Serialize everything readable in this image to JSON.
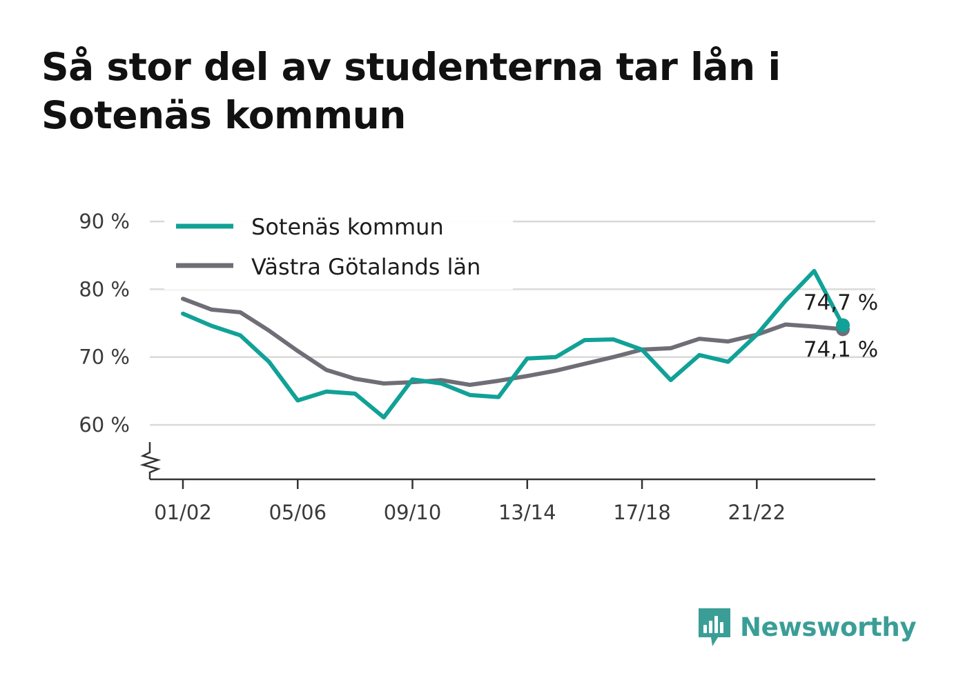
{
  "title": "Så stor del av studenterna tar lån i Sotenäs kommun",
  "brand": {
    "name": "Newsworthy",
    "icon": "newsworthy-logo-icon",
    "color": "#3a9e96"
  },
  "colors": {
    "series_a": "#11a197",
    "series_b": "#6f6e76",
    "grid": "#d9d9d9",
    "axis": "#333333"
  },
  "chart_data": {
    "type": "line",
    "title": "Så stor del av studenterna tar lån i Sotenäs kommun",
    "xlabel": "",
    "ylabel": "",
    "ylim": [
      52,
      90
    ],
    "yticks": [
      60,
      70,
      80,
      90
    ],
    "ytick_labels": [
      "60 %",
      "70 %",
      "80 %",
      "90 %"
    ],
    "y_axis_break": true,
    "grid": true,
    "legend_position": "top-left",
    "categories": [
      "01/02",
      "02/03",
      "03/04",
      "04/05",
      "05/06",
      "06/07",
      "07/08",
      "08/09",
      "09/10",
      "10/11",
      "11/12",
      "12/13",
      "13/14",
      "14/15",
      "15/16",
      "16/17",
      "17/18",
      "18/19",
      "19/20",
      "20/21",
      "21/22",
      "22/23",
      "23/24",
      "24/25"
    ],
    "xtick_labels": [
      "01/02",
      "05/06",
      "09/10",
      "13/14",
      "17/18",
      "21/22"
    ],
    "series": [
      {
        "name": "Sotenäs kommun",
        "color": "#11a197",
        "values": [
          76.4,
          74.6,
          73.2,
          69.3,
          63.6,
          64.9,
          64.6,
          61.1,
          66.7,
          66.1,
          64.4,
          64.1,
          69.8,
          70.0,
          72.5,
          72.6,
          71.1,
          66.6,
          70.3,
          69.3,
          73.3,
          78.3,
          82.7,
          74.7
        ],
        "end_label": "74,7 %"
      },
      {
        "name": "Västra Götalands län",
        "color": "#6f6e76",
        "values": [
          78.6,
          77.0,
          76.6,
          73.9,
          70.9,
          68.1,
          66.8,
          66.1,
          66.3,
          66.6,
          65.9,
          66.5,
          67.2,
          68.0,
          69.0,
          70.0,
          71.1,
          71.3,
          72.7,
          72.3,
          73.3,
          74.8,
          74.5,
          74.1
        ],
        "end_label": "74,1 %"
      }
    ]
  }
}
